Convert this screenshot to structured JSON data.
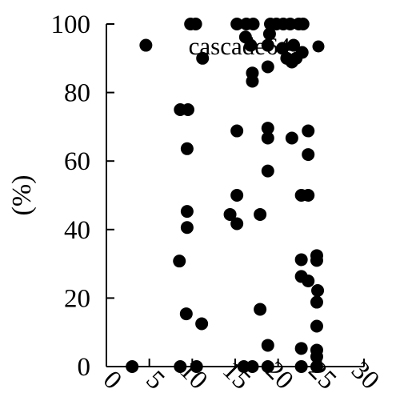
{
  "chart_data": {
    "type": "scatter",
    "title": "",
    "xlabel": "",
    "ylabel": "(%)",
    "xlim": [
      0,
      30
    ],
    "ylim": [
      0,
      100
    ],
    "xticks": [
      "0",
      "5",
      "10",
      "15",
      "20",
      "25",
      "30"
    ],
    "yticks": [
      "0",
      "20",
      "40",
      "60",
      "80",
      "100"
    ],
    "grid": false,
    "legend_position": "top-right",
    "series": [
      {
        "name": "cascade64",
        "color": "#000000",
        "points": [
          {
            "x": 3.0,
            "y": 0
          },
          {
            "x": 4.6,
            "y": 93.8
          },
          {
            "x": 8.6,
            "y": 0
          },
          {
            "x": 8.5,
            "y": 30.8
          },
          {
            "x": 8.6,
            "y": 75
          },
          {
            "x": 9.3,
            "y": 15.4
          },
          {
            "x": 9.4,
            "y": 40.6
          },
          {
            "x": 9.4,
            "y": 45.3
          },
          {
            "x": 9.4,
            "y": 63.6
          },
          {
            "x": 9.5,
            "y": 75
          },
          {
            "x": 9.8,
            "y": 100
          },
          {
            "x": 10.5,
            "y": 0
          },
          {
            "x": 10.4,
            "y": 100
          },
          {
            "x": 11.1,
            "y": 12.5
          },
          {
            "x": 11.2,
            "y": 90
          },
          {
            "x": 14.4,
            "y": 44.4
          },
          {
            "x": 15.2,
            "y": 41.7
          },
          {
            "x": 15.2,
            "y": 50
          },
          {
            "x": 15.2,
            "y": 68.8
          },
          {
            "x": 15.2,
            "y": 100
          },
          {
            "x": 16.0,
            "y": 0
          },
          {
            "x": 16.2,
            "y": 96.2
          },
          {
            "x": 16.3,
            "y": 100
          },
          {
            "x": 16.8,
            "y": 93.8
          },
          {
            "x": 17.0,
            "y": 0
          },
          {
            "x": 17.0,
            "y": 83.3
          },
          {
            "x": 17.0,
            "y": 85.7
          },
          {
            "x": 17.1,
            "y": 100
          },
          {
            "x": 17.9,
            "y": 16.7
          },
          {
            "x": 17.9,
            "y": 44.4
          },
          {
            "x": 18.8,
            "y": 0
          },
          {
            "x": 18.8,
            "y": 6.2
          },
          {
            "x": 18.8,
            "y": 57.1
          },
          {
            "x": 18.8,
            "y": 66.7
          },
          {
            "x": 18.8,
            "y": 69.6
          },
          {
            "x": 18.8,
            "y": 87.5
          },
          {
            "x": 18.8,
            "y": 93.8
          },
          {
            "x": 19.0,
            "y": 97.1
          },
          {
            "x": 19.1,
            "y": 100
          },
          {
            "x": 19.8,
            "y": 100
          },
          {
            "x": 20.5,
            "y": 92.9
          },
          {
            "x": 20.6,
            "y": 100
          },
          {
            "x": 21.0,
            "y": 90.0
          },
          {
            "x": 21.6,
            "y": 66.7
          },
          {
            "x": 21.6,
            "y": 88.9
          },
          {
            "x": 21.4,
            "y": 100
          },
          {
            "x": 22.1,
            "y": 90.0
          },
          {
            "x": 21.8,
            "y": 93.8
          },
          {
            "x": 22.4,
            "y": 100
          },
          {
            "x": 22.7,
            "y": 0
          },
          {
            "x": 22.7,
            "y": 5.3
          },
          {
            "x": 22.7,
            "y": 26.3
          },
          {
            "x": 22.7,
            "y": 31.2
          },
          {
            "x": 22.7,
            "y": 50
          },
          {
            "x": 22.8,
            "y": 91.7
          },
          {
            "x": 22.9,
            "y": 100
          },
          {
            "x": 23.5,
            "y": 25
          },
          {
            "x": 23.5,
            "y": 50
          },
          {
            "x": 23.5,
            "y": 61.9
          },
          {
            "x": 23.5,
            "y": 68.8
          },
          {
            "x": 24.5,
            "y": 0
          },
          {
            "x": 24.5,
            "y": 2.9
          },
          {
            "x": 24.5,
            "y": 4.8
          },
          {
            "x": 24.5,
            "y": 11.8
          },
          {
            "x": 24.5,
            "y": 18.8
          },
          {
            "x": 24.6,
            "y": 22.2
          },
          {
            "x": 24.5,
            "y": 31.0
          },
          {
            "x": 24.5,
            "y": 32.4
          }
        ]
      }
    ]
  }
}
